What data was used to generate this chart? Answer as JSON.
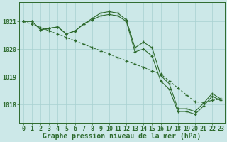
{
  "title": "Graphe pression niveau de la mer (hPa)",
  "bg_color": "#cce8e8",
  "grid_color": "#a8d0d0",
  "line_color": "#2d6a2d",
  "hours": [
    0,
    1,
    2,
    3,
    4,
    5,
    6,
    7,
    8,
    9,
    10,
    11,
    12,
    13,
    14,
    15,
    16,
    17,
    18,
    19,
    20,
    21,
    22,
    23
  ],
  "x_labels": [
    "0",
    "1",
    "2",
    "3",
    "4",
    "5",
    "6",
    "7",
    "8",
    "9",
    "10",
    "11",
    "12",
    "13",
    "14",
    "15",
    "16",
    "17",
    "18",
    "19",
    "20",
    "21",
    "22",
    "23"
  ],
  "line_wavy": [
    1021.0,
    1021.0,
    1020.7,
    1020.75,
    1020.8,
    1020.55,
    1020.65,
    1020.9,
    1021.1,
    1021.3,
    1021.35,
    1021.3,
    1021.05,
    1020.05,
    1020.25,
    1020.05,
    1019.05,
    1018.75,
    1017.85,
    1017.85,
    1017.75,
    1018.05,
    1018.4,
    1018.2
  ],
  "line_wavy2": [
    1021.0,
    1021.0,
    1020.7,
    1020.75,
    1020.8,
    1020.55,
    1020.65,
    1020.9,
    1021.05,
    1021.2,
    1021.25,
    1021.2,
    1021.0,
    1019.9,
    1020.0,
    1019.75,
    1018.85,
    1018.55,
    1017.75,
    1017.75,
    1017.65,
    1017.95,
    1018.3,
    1018.15
  ],
  "line_diagonal": [
    1021.0,
    1020.9,
    1020.78,
    1020.66,
    1020.54,
    1020.42,
    1020.3,
    1020.18,
    1020.06,
    1019.94,
    1019.82,
    1019.7,
    1019.58,
    1019.46,
    1019.34,
    1019.22,
    1019.1,
    1018.85,
    1018.6,
    1018.35,
    1018.1,
    1018.08,
    1018.15,
    1018.2
  ],
  "ylim_min": 1017.35,
  "ylim_max": 1021.7,
  "yticks": [
    1018,
    1019,
    1020,
    1021
  ],
  "tick_fs": 6,
  "title_fs": 7,
  "lw": 0.8,
  "ms": 2.5
}
